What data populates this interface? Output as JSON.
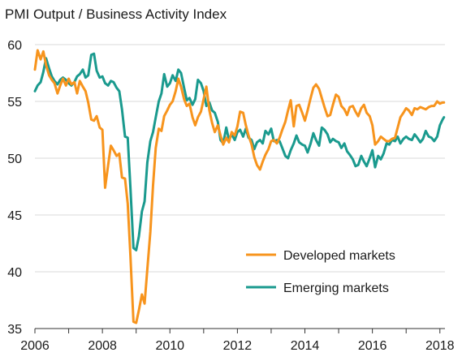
{
  "chart_data": {
    "type": "line",
    "title": "PMI Output / Business Activity Index",
    "xlabel": "",
    "ylabel": "",
    "xlim": [
      2006,
      2018.15
    ],
    "ylim": [
      35,
      60
    ],
    "x_ticks": [
      2006,
      2008,
      2010,
      2012,
      2014,
      2016,
      2018
    ],
    "y_ticks": [
      35,
      40,
      45,
      50,
      55,
      60
    ],
    "grid": "horizontal",
    "legend": "bottom-right",
    "series": [
      {
        "name": "Developed markets",
        "color": "#f7941d",
        "points": [
          [
            2006.0,
            57.8
          ],
          [
            2006.08,
            59.5
          ],
          [
            2006.17,
            58.7
          ],
          [
            2006.25,
            59.4
          ],
          [
            2006.33,
            58.2
          ],
          [
            2006.42,
            57.3
          ],
          [
            2006.5,
            56.9
          ],
          [
            2006.58,
            56.6
          ],
          [
            2006.67,
            55.7
          ],
          [
            2006.75,
            56.4
          ],
          [
            2006.83,
            57.0
          ],
          [
            2006.92,
            56.4
          ],
          [
            2007.0,
            57.0
          ],
          [
            2007.08,
            56.5
          ],
          [
            2007.17,
            56.7
          ],
          [
            2007.25,
            55.7
          ],
          [
            2007.33,
            56.8
          ],
          [
            2007.42,
            56.3
          ],
          [
            2007.5,
            55.9
          ],
          [
            2007.58,
            54.9
          ],
          [
            2007.67,
            53.4
          ],
          [
            2007.75,
            53.3
          ],
          [
            2007.83,
            53.7
          ],
          [
            2007.92,
            52.7
          ],
          [
            2008.0,
            52.5
          ],
          [
            2008.08,
            47.4
          ],
          [
            2008.17,
            49.4
          ],
          [
            2008.25,
            51.1
          ],
          [
            2008.33,
            50.7
          ],
          [
            2008.42,
            50.2
          ],
          [
            2008.5,
            50.4
          ],
          [
            2008.58,
            48.3
          ],
          [
            2008.67,
            48.2
          ],
          [
            2008.75,
            46.0
          ],
          [
            2008.83,
            41.4
          ],
          [
            2008.92,
            35.6
          ],
          [
            2009.0,
            35.5
          ],
          [
            2009.08,
            36.6
          ],
          [
            2009.17,
            38.0
          ],
          [
            2009.25,
            37.2
          ],
          [
            2009.33,
            40.2
          ],
          [
            2009.42,
            43.5
          ],
          [
            2009.5,
            47.6
          ],
          [
            2009.58,
            50.9
          ],
          [
            2009.67,
            52.6
          ],
          [
            2009.75,
            52.4
          ],
          [
            2009.83,
            53.7
          ],
          [
            2009.92,
            54.2
          ],
          [
            2010.0,
            54.7
          ],
          [
            2010.08,
            55.0
          ],
          [
            2010.17,
            55.9
          ],
          [
            2010.25,
            57.0
          ],
          [
            2010.33,
            56.3
          ],
          [
            2010.42,
            55.2
          ],
          [
            2010.5,
            54.6
          ],
          [
            2010.58,
            54.8
          ],
          [
            2010.67,
            53.6
          ],
          [
            2010.75,
            52.9
          ],
          [
            2010.83,
            53.6
          ],
          [
            2010.92,
            54.1
          ],
          [
            2011.0,
            55.2
          ],
          [
            2011.08,
            56.3
          ],
          [
            2011.17,
            54.2
          ],
          [
            2011.25,
            53.1
          ],
          [
            2011.33,
            52.3
          ],
          [
            2011.42,
            52.9
          ],
          [
            2011.5,
            52.0
          ],
          [
            2011.58,
            51.2
          ],
          [
            2011.67,
            51.8
          ],
          [
            2011.75,
            51.4
          ],
          [
            2011.83,
            52.3
          ],
          [
            2011.92,
            52.0
          ],
          [
            2012.0,
            52.8
          ],
          [
            2012.08,
            54.1
          ],
          [
            2012.17,
            54.0
          ],
          [
            2012.25,
            52.9
          ],
          [
            2012.33,
            52.0
          ],
          [
            2012.42,
            51.2
          ],
          [
            2012.5,
            50.1
          ],
          [
            2012.58,
            49.4
          ],
          [
            2012.67,
            49.0
          ],
          [
            2012.75,
            49.7
          ],
          [
            2012.83,
            50.3
          ],
          [
            2012.92,
            50.8
          ],
          [
            2013.0,
            51.5
          ],
          [
            2013.08,
            51.6
          ],
          [
            2013.17,
            51.3
          ],
          [
            2013.25,
            51.8
          ],
          [
            2013.33,
            52.5
          ],
          [
            2013.42,
            53.2
          ],
          [
            2013.5,
            54.2
          ],
          [
            2013.58,
            55.1
          ],
          [
            2013.67,
            52.8
          ],
          [
            2013.75,
            54.6
          ],
          [
            2013.83,
            54.7
          ],
          [
            2013.92,
            54.0
          ],
          [
            2014.0,
            53.3
          ],
          [
            2014.08,
            54.2
          ],
          [
            2014.17,
            55.3
          ],
          [
            2014.25,
            56.2
          ],
          [
            2014.33,
            56.5
          ],
          [
            2014.42,
            56.1
          ],
          [
            2014.5,
            55.3
          ],
          [
            2014.58,
            54.5
          ],
          [
            2014.67,
            53.7
          ],
          [
            2014.75,
            53.8
          ],
          [
            2014.83,
            54.7
          ],
          [
            2014.92,
            55.6
          ],
          [
            2015.0,
            55.4
          ],
          [
            2015.08,
            54.6
          ],
          [
            2015.17,
            54.3
          ],
          [
            2015.25,
            53.8
          ],
          [
            2015.33,
            54.5
          ],
          [
            2015.42,
            54.6
          ],
          [
            2015.5,
            54.1
          ],
          [
            2015.58,
            53.7
          ],
          [
            2015.67,
            54.4
          ],
          [
            2015.75,
            54.7
          ],
          [
            2015.83,
            54.0
          ],
          [
            2015.92,
            53.7
          ],
          [
            2016.0,
            52.9
          ],
          [
            2016.08,
            51.2
          ],
          [
            2016.17,
            51.5
          ],
          [
            2016.25,
            51.9
          ],
          [
            2016.33,
            51.7
          ],
          [
            2016.42,
            51.5
          ],
          [
            2016.5,
            51.5
          ],
          [
            2016.58,
            51.7
          ],
          [
            2016.67,
            51.8
          ],
          [
            2016.75,
            52.7
          ],
          [
            2016.83,
            53.6
          ],
          [
            2016.92,
            54.0
          ],
          [
            2017.0,
            54.4
          ],
          [
            2017.08,
            54.2
          ],
          [
            2017.17,
            53.8
          ],
          [
            2017.25,
            54.4
          ],
          [
            2017.33,
            54.3
          ],
          [
            2017.42,
            54.5
          ],
          [
            2017.5,
            54.4
          ],
          [
            2017.58,
            54.3
          ],
          [
            2017.67,
            54.5
          ],
          [
            2017.75,
            54.6
          ],
          [
            2017.83,
            54.6
          ],
          [
            2017.92,
            55.0
          ],
          [
            2018.0,
            54.8
          ],
          [
            2018.08,
            54.9
          ],
          [
            2018.12,
            54.9
          ]
        ]
      },
      {
        "name": "Emerging markets",
        "color": "#1a9a8e",
        "points": [
          [
            2006.0,
            55.9
          ],
          [
            2006.08,
            56.4
          ],
          [
            2006.17,
            56.7
          ],
          [
            2006.25,
            57.6
          ],
          [
            2006.33,
            58.8
          ],
          [
            2006.42,
            57.9
          ],
          [
            2006.5,
            57.2
          ],
          [
            2006.58,
            56.8
          ],
          [
            2006.67,
            56.5
          ],
          [
            2006.75,
            56.9
          ],
          [
            2006.83,
            57.1
          ],
          [
            2006.92,
            56.9
          ],
          [
            2007.0,
            56.6
          ],
          [
            2007.08,
            56.4
          ],
          [
            2007.17,
            56.7
          ],
          [
            2007.25,
            57.2
          ],
          [
            2007.33,
            57.4
          ],
          [
            2007.42,
            57.8
          ],
          [
            2007.5,
            57.1
          ],
          [
            2007.58,
            57.3
          ],
          [
            2007.67,
            59.1
          ],
          [
            2007.75,
            59.2
          ],
          [
            2007.83,
            57.7
          ],
          [
            2007.92,
            57.1
          ],
          [
            2008.0,
            57.2
          ],
          [
            2008.08,
            56.6
          ],
          [
            2008.17,
            56.4
          ],
          [
            2008.25,
            56.8
          ],
          [
            2008.33,
            56.7
          ],
          [
            2008.42,
            56.2
          ],
          [
            2008.5,
            55.9
          ],
          [
            2008.58,
            54.3
          ],
          [
            2008.67,
            51.9
          ],
          [
            2008.75,
            51.8
          ],
          [
            2008.83,
            47.4
          ],
          [
            2008.92,
            42.1
          ],
          [
            2009.0,
            41.9
          ],
          [
            2009.08,
            43.1
          ],
          [
            2009.17,
            45.3
          ],
          [
            2009.25,
            46.2
          ],
          [
            2009.33,
            49.6
          ],
          [
            2009.42,
            51.5
          ],
          [
            2009.5,
            52.3
          ],
          [
            2009.58,
            53.6
          ],
          [
            2009.67,
            55.0
          ],
          [
            2009.75,
            55.7
          ],
          [
            2009.83,
            57.4
          ],
          [
            2009.92,
            56.3
          ],
          [
            2010.0,
            56.6
          ],
          [
            2010.08,
            57.3
          ],
          [
            2010.17,
            56.8
          ],
          [
            2010.25,
            57.8
          ],
          [
            2010.33,
            57.5
          ],
          [
            2010.42,
            56.2
          ],
          [
            2010.5,
            55.1
          ],
          [
            2010.58,
            55.3
          ],
          [
            2010.67,
            54.7
          ],
          [
            2010.75,
            55.2
          ],
          [
            2010.83,
            56.9
          ],
          [
            2010.92,
            56.6
          ],
          [
            2011.0,
            55.9
          ],
          [
            2011.08,
            54.6
          ],
          [
            2011.17,
            54.9
          ],
          [
            2011.25,
            54.2
          ],
          [
            2011.33,
            54.0
          ],
          [
            2011.42,
            53.2
          ],
          [
            2011.5,
            51.6
          ],
          [
            2011.58,
            51.3
          ],
          [
            2011.67,
            52.7
          ],
          [
            2011.75,
            51.6
          ],
          [
            2011.83,
            52.1
          ],
          [
            2011.92,
            51.6
          ],
          [
            2012.0,
            52.3
          ],
          [
            2012.08,
            52.5
          ],
          [
            2012.17,
            51.9
          ],
          [
            2012.25,
            52.6
          ],
          [
            2012.33,
            51.8
          ],
          [
            2012.42,
            51.6
          ],
          [
            2012.5,
            50.8
          ],
          [
            2012.58,
            51.4
          ],
          [
            2012.67,
            51.6
          ],
          [
            2012.75,
            51.3
          ],
          [
            2012.83,
            52.4
          ],
          [
            2012.92,
            52.1
          ],
          [
            2013.0,
            52.6
          ],
          [
            2013.08,
            51.5
          ],
          [
            2013.17,
            51.6
          ],
          [
            2013.25,
            51.5
          ],
          [
            2013.33,
            50.9
          ],
          [
            2013.42,
            50.2
          ],
          [
            2013.5,
            50.0
          ],
          [
            2013.58,
            50.7
          ],
          [
            2013.67,
            51.3
          ],
          [
            2013.75,
            52.0
          ],
          [
            2013.83,
            51.4
          ],
          [
            2013.92,
            51.2
          ],
          [
            2014.0,
            51.1
          ],
          [
            2014.08,
            50.5
          ],
          [
            2014.17,
            51.3
          ],
          [
            2014.25,
            52.2
          ],
          [
            2014.33,
            51.6
          ],
          [
            2014.42,
            51.1
          ],
          [
            2014.5,
            52.7
          ],
          [
            2014.58,
            52.5
          ],
          [
            2014.67,
            52.1
          ],
          [
            2014.75,
            51.4
          ],
          [
            2014.83,
            51.7
          ],
          [
            2014.92,
            51.5
          ],
          [
            2015.0,
            51.4
          ],
          [
            2015.08,
            50.9
          ],
          [
            2015.17,
            51.3
          ],
          [
            2015.25,
            50.6
          ],
          [
            2015.33,
            50.3
          ],
          [
            2015.42,
            49.9
          ],
          [
            2015.5,
            49.3
          ],
          [
            2015.58,
            49.4
          ],
          [
            2015.67,
            50.2
          ],
          [
            2015.75,
            49.7
          ],
          [
            2015.83,
            49.3
          ],
          [
            2015.92,
            50.0
          ],
          [
            2016.0,
            50.7
          ],
          [
            2016.08,
            49.2
          ],
          [
            2016.17,
            50.2
          ],
          [
            2016.25,
            49.9
          ],
          [
            2016.33,
            50.4
          ],
          [
            2016.42,
            51.3
          ],
          [
            2016.5,
            51.2
          ],
          [
            2016.58,
            51.6
          ],
          [
            2016.67,
            51.5
          ],
          [
            2016.75,
            51.9
          ],
          [
            2016.83,
            51.3
          ],
          [
            2016.92,
            51.7
          ],
          [
            2017.0,
            51.9
          ],
          [
            2017.08,
            51.7
          ],
          [
            2017.17,
            51.6
          ],
          [
            2017.25,
            52.1
          ],
          [
            2017.33,
            51.8
          ],
          [
            2017.42,
            51.4
          ],
          [
            2017.5,
            51.7
          ],
          [
            2017.58,
            52.4
          ],
          [
            2017.67,
            51.9
          ],
          [
            2017.75,
            51.8
          ],
          [
            2017.83,
            51.5
          ],
          [
            2017.92,
            51.9
          ],
          [
            2018.0,
            52.9
          ],
          [
            2018.08,
            53.4
          ],
          [
            2018.12,
            53.6
          ]
        ]
      }
    ]
  }
}
